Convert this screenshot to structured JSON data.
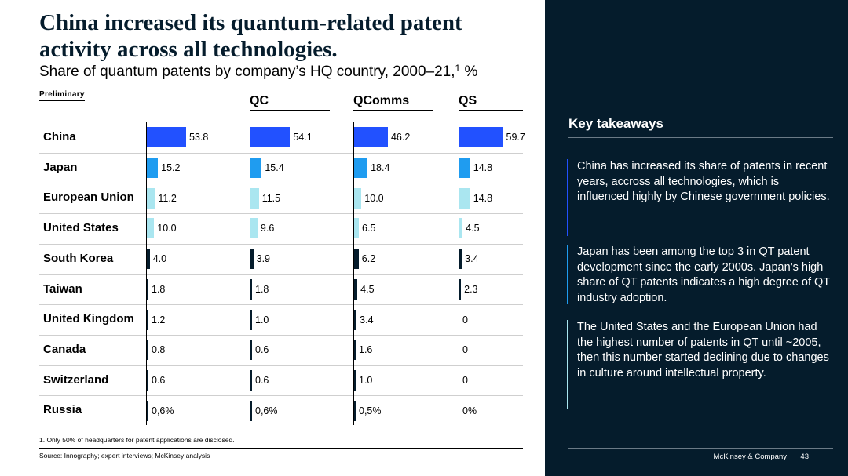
{
  "title": "China increased its quantum-related patent activity across all technologies.",
  "subtitle": "Share of quantum patents by company’s HQ country, 2000–21,",
  "subtitle_sup": "1",
  "subtitle_unit": " %",
  "preliminary_label": "Preliminary",
  "chart_data": {
    "type": "bar",
    "orientation": "horizontal",
    "categories": [
      "China",
      "Japan",
      "European Union",
      "United States",
      "South Korea",
      "Taiwan",
      "United Kingdom",
      "Canada",
      "Switzerland",
      "Russia"
    ],
    "series": [
      {
        "name": "",
        "values": [
          53.8,
          15.2,
          11.2,
          10.0,
          4.0,
          1.8,
          1.2,
          0.8,
          0.6,
          0.6
        ],
        "labels": [
          "53.8",
          "15.2",
          "11.2",
          "10.0",
          "4.0",
          "1.8",
          "1.2",
          "0.8",
          "0.6",
          "0,6%"
        ]
      },
      {
        "name": "QC",
        "values": [
          54.1,
          15.4,
          11.5,
          9.6,
          3.9,
          1.8,
          1.0,
          0.6,
          0.6,
          0.6
        ],
        "labels": [
          "54.1",
          "15.4",
          "11.5",
          "9.6",
          "3.9",
          "1.8",
          "1.0",
          "0.6",
          "0.6",
          "0,6%"
        ]
      },
      {
        "name": "QComms",
        "values": [
          46.2,
          18.4,
          10.0,
          6.5,
          6.2,
          4.5,
          3.4,
          1.6,
          1.0,
          0.5
        ],
        "labels": [
          "46.2",
          "18.4",
          "10.0",
          "6.5",
          "6.2",
          "4.5",
          "3.4",
          "1.6",
          "1.0",
          "0,5%"
        ]
      },
      {
        "name": "QS",
        "values": [
          59.7,
          14.8,
          14.8,
          4.5,
          3.4,
          2.3,
          0,
          0,
          0,
          0
        ],
        "labels": [
          "59.7",
          "14.8",
          "14.8",
          "4.5",
          "3.4",
          "2.3",
          "0",
          "0",
          "0",
          "0%"
        ]
      }
    ],
    "category_colors": [
      "#2251ff",
      "#1f9cf0",
      "#aae6f0",
      "#aae6f0",
      "#051c2c",
      "#051c2c",
      "#051c2c",
      "#051c2c",
      "#051c2c",
      "#051c2c"
    ],
    "xlim": [
      0,
      60
    ],
    "title": "Share of quantum patents by company’s HQ country, 2000–21, %"
  },
  "footnote": "1. Only 50% of headquarters for patent applications are disclosed.",
  "source": "Source: Innography; expert interviews; McKinsey analysis",
  "sidebar": {
    "title": "Key takeaways",
    "takeaways": [
      {
        "text": "China has increased its share of patents in recent years, accross all technologies, which is influenced highly by Chinese government policies.",
        "color": "#2251ff"
      },
      {
        "text": "Japan has been among the top 3 in QT patent development since the early 2000s. Japan’s high share of QT patents indicates a high degree of QT industry adoption.",
        "color": "#1f9cf0"
      },
      {
        "text": "The United States and the European Union had the highest number of patents in QT until ~2005, then this number started declining due to changes in culture around intellectual property.",
        "color": "#aae6f0"
      }
    ]
  },
  "brand": "McKinsey & Company",
  "page_number": "43"
}
